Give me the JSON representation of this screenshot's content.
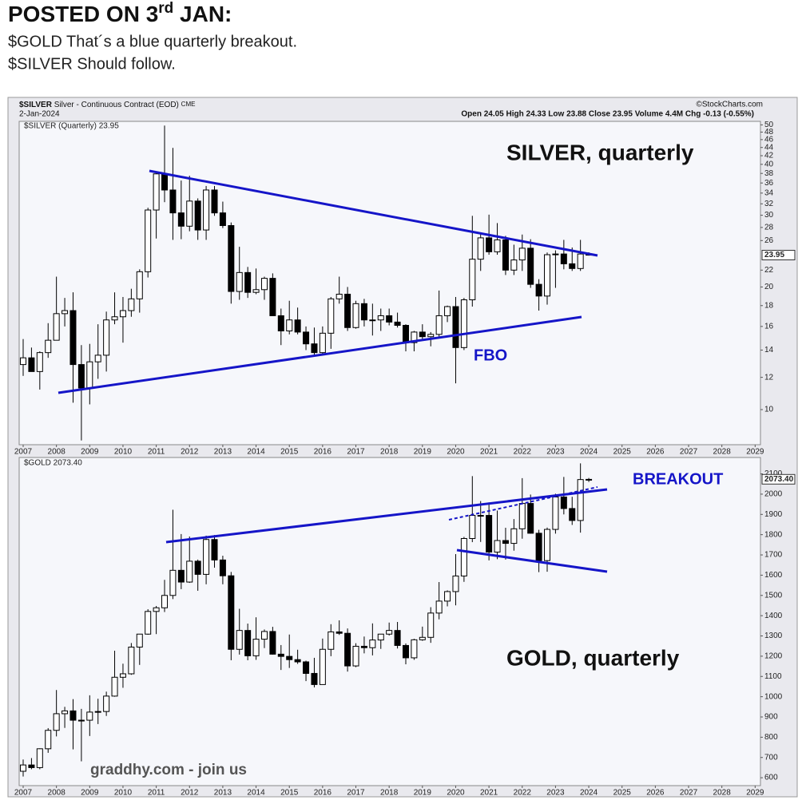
{
  "post": {
    "title": [
      "POSTED ON 3",
      "rd",
      " JAN:"
    ],
    "lines": [
      "$GOLD That´s a blue quarterly breakout.",
      "$SILVER Should follow."
    ]
  },
  "header": {
    "symbol": "$SILVER",
    "description": "Silver - Continuous Contract (EOD)",
    "exchange": "CME",
    "date": "2-Jan-2024",
    "quote": "Open 24.05  High 24.33  Low 23.88  Close 23.95  Volume 4.4M  Chg -0.13 (-0.55%)",
    "source": "©StockCharts.com"
  },
  "chart_data": [
    {
      "type": "candlestick",
      "legend": "$SILVER (Quarterly) 23.95",
      "log_scale": true,
      "grid": false,
      "annotations": [
        "SILVER, quarterly",
        "FBO"
      ],
      "last": 23.95,
      "xlim": [
        2006.88,
        2029.16
      ],
      "xticks": [
        2007,
        2008,
        2009,
        2010,
        2011,
        2012,
        2013,
        2014,
        2015,
        2016,
        2017,
        2018,
        2019,
        2020,
        2021,
        2022,
        2023,
        2024,
        2025,
        2026,
        2027,
        2028,
        2029
      ],
      "ylim": [
        8.2,
        51
      ],
      "yticks": [
        10,
        12,
        14,
        16,
        18,
        20,
        22,
        26,
        28,
        30,
        32,
        34,
        36,
        38,
        40,
        42,
        44,
        46,
        48,
        50
      ],
      "x": [
        2007,
        2007.25,
        2007.5,
        2007.75,
        2008,
        2008.25,
        2008.5,
        2008.75,
        2009,
        2009.25,
        2009.5,
        2009.75,
        2010,
        2010.25,
        2010.5,
        2010.75,
        2011,
        2011.25,
        2011.5,
        2011.75,
        2012,
        2012.25,
        2012.5,
        2012.75,
        2013,
        2013.25,
        2013.5,
        2013.75,
        2014,
        2014.25,
        2014.5,
        2014.75,
        2015,
        2015.25,
        2015.5,
        2015.75,
        2016,
        2016.25,
        2016.5,
        2016.75,
        2017,
        2017.25,
        2017.5,
        2017.75,
        2018,
        2018.25,
        2018.5,
        2018.75,
        2019,
        2019.25,
        2019.5,
        2019.75,
        2020,
        2020.25,
        2020.5,
        2020.75,
        2021,
        2021.25,
        2021.5,
        2021.75,
        2022,
        2022.25,
        2022.5,
        2022.75,
        2023,
        2023.25,
        2023.5,
        2023.75,
        2024
      ],
      "ohlc": [
        [
          12.9,
          14.9,
          12.1,
          13.4
        ],
        [
          13.4,
          14.2,
          12.4,
          12.4
        ],
        [
          12.4,
          13.9,
          11.2,
          13.8
        ],
        [
          13.8,
          16.3,
          13.4,
          14.8
        ],
        [
          14.8,
          21.2,
          14.8,
          17.2
        ],
        [
          17.2,
          18.8,
          16.0,
          17.5
        ],
        [
          17.5,
          19.4,
          10.4,
          12.9
        ],
        [
          12.9,
          14.4,
          8.4,
          11.3
        ],
        [
          11.3,
          14.5,
          10.3,
          13.1
        ],
        [
          13.1,
          16.2,
          11.9,
          13.6
        ],
        [
          13.6,
          17.4,
          12.4,
          16.6
        ],
        [
          16.6,
          19.4,
          16.2,
          16.9
        ],
        [
          16.9,
          18.9,
          14.6,
          17.5
        ],
        [
          17.5,
          19.8,
          16.9,
          18.7
        ],
        [
          18.7,
          22.1,
          17.3,
          21.8
        ],
        [
          21.8,
          31.3,
          21.1,
          30.9
        ],
        [
          30.9,
          38.2,
          26.3,
          37.9
        ],
        [
          37.9,
          49.8,
          32.3,
          34.6
        ],
        [
          34.6,
          43.9,
          26.1,
          30.4
        ],
        [
          30.4,
          36.5,
          26.2,
          28.2
        ],
        [
          28.2,
          37.5,
          27.4,
          32.5
        ],
        [
          32.5,
          33.0,
          26.1,
          27.6
        ],
        [
          27.6,
          35.4,
          26.1,
          34.6
        ],
        [
          34.6,
          35.4,
          29.9,
          30.4
        ],
        [
          30.4,
          32.4,
          27.9,
          28.3
        ],
        [
          28.3,
          28.8,
          18.2,
          19.5
        ],
        [
          19.5,
          25.1,
          18.6,
          21.7
        ],
        [
          21.7,
          22.4,
          18.8,
          19.4
        ],
        [
          19.4,
          22.2,
          19.2,
          19.7
        ],
        [
          19.7,
          21.2,
          18.6,
          21.0
        ],
        [
          21.0,
          21.6,
          17.0,
          17.0
        ],
        [
          17.0,
          17.7,
          14.4,
          15.6
        ],
        [
          15.6,
          18.5,
          15.3,
          16.6
        ],
        [
          16.6,
          17.8,
          15.3,
          15.5
        ],
        [
          15.5,
          16.0,
          14.0,
          14.5
        ],
        [
          14.5,
          15.9,
          13.6,
          13.8
        ],
        [
          13.8,
          16.0,
          13.7,
          15.4
        ],
        [
          15.4,
          18.9,
          14.1,
          18.7
        ],
        [
          18.7,
          21.2,
          18.2,
          19.2
        ],
        [
          19.2,
          20.0,
          15.6,
          15.9
        ],
        [
          15.9,
          18.5,
          15.8,
          18.2
        ],
        [
          18.2,
          18.7,
          16.0,
          16.6
        ],
        [
          16.6,
          18.2,
          15.2,
          16.6
        ],
        [
          16.6,
          17.7,
          15.6,
          17.0
        ],
        [
          17.0,
          17.7,
          16.1,
          16.4
        ],
        [
          16.4,
          17.3,
          15.9,
          16.1
        ],
        [
          16.1,
          16.2,
          13.9,
          14.6
        ],
        [
          14.6,
          15.6,
          13.9,
          15.5
        ],
        [
          15.5,
          16.2,
          14.8,
          15.1
        ],
        [
          15.1,
          15.5,
          14.3,
          15.3
        ],
        [
          15.3,
          19.6,
          15.0,
          17.0
        ],
        [
          17.0,
          18.0,
          16.4,
          17.9
        ],
        [
          17.9,
          18.9,
          11.6,
          14.2
        ],
        [
          14.2,
          18.8,
          14.0,
          18.6
        ],
        [
          18.6,
          29.9,
          17.9,
          23.4
        ],
        [
          23.4,
          27.0,
          21.9,
          26.4
        ],
        [
          26.4,
          30.1,
          24.0,
          24.4
        ],
        [
          24.4,
          28.7,
          24.0,
          26.1
        ],
        [
          26.1,
          26.7,
          21.4,
          22.0
        ],
        [
          22.0,
          25.4,
          21.4,
          23.3
        ],
        [
          23.3,
          26.9,
          21.9,
          24.9
        ],
        [
          24.9,
          26.2,
          19.9,
          20.3
        ],
        [
          20.3,
          20.9,
          17.5,
          19.0
        ],
        [
          19.0,
          24.3,
          18.1,
          24.0
        ],
        [
          24.0,
          24.6,
          19.9,
          24.1
        ],
        [
          24.1,
          26.1,
          22.1,
          22.8
        ],
        [
          22.8,
          25.0,
          21.9,
          22.2
        ],
        [
          22.2,
          26.1,
          21.9,
          24.1
        ],
        [
          24.05,
          24.33,
          23.88,
          23.95
        ]
      ]
    },
    {
      "type": "candlestick",
      "legend": "$GOLD 2073.40",
      "log_scale": false,
      "grid": false,
      "annotations": [
        "BREAKOUT",
        "GOLD, quarterly",
        "graddhy.com - join us"
      ],
      "last": {
        "value": 2073.4,
        "label": "2073.40"
      },
      "xlim": [
        2006.88,
        2029.16
      ],
      "xticks": [
        2007,
        2008,
        2009,
        2010,
        2011,
        2012,
        2013,
        2014,
        2015,
        2016,
        2017,
        2018,
        2019,
        2020,
        2021,
        2022,
        2023,
        2024,
        2025,
        2026,
        2027,
        2028,
        2029
      ],
      "ylim": [
        561,
        2181
      ],
      "yticks": [
        600,
        700,
        800,
        900,
        1000,
        1100,
        1200,
        1300,
        1400,
        1500,
        1600,
        1700,
        1800,
        1900,
        2000,
        2100
      ],
      "x": [
        2007,
        2007.25,
        2007.5,
        2007.75,
        2008,
        2008.25,
        2008.5,
        2008.75,
        2009,
        2009.25,
        2009.5,
        2009.75,
        2010,
        2010.25,
        2010.5,
        2010.75,
        2011,
        2011.25,
        2011.5,
        2011.75,
        2012,
        2012.25,
        2012.5,
        2012.75,
        2013,
        2013.25,
        2013.5,
        2013.75,
        2014,
        2014.25,
        2014.5,
        2014.75,
        2015,
        2015.25,
        2015.5,
        2015.75,
        2016,
        2016.25,
        2016.5,
        2016.75,
        2017,
        2017.25,
        2017.5,
        2017.75,
        2018,
        2018.25,
        2018.5,
        2018.75,
        2019,
        2019.25,
        2019.5,
        2019.75,
        2020,
        2020.25,
        2020.5,
        2020.75,
        2021,
        2021.25,
        2021.5,
        2021.75,
        2022,
        2022.25,
        2022.5,
        2022.75,
        2023,
        2023.25,
        2023.5,
        2023.75,
        2024
      ],
      "ohlc": [
        [
          632,
          690,
          606,
          663
        ],
        [
          663,
          697,
          642,
          650
        ],
        [
          650,
          745,
          642,
          743
        ],
        [
          743,
          845,
          723,
          834
        ],
        [
          834,
          1033,
          804,
          916
        ],
        [
          916,
          950,
          846,
          930
        ],
        [
          930,
          988,
          740,
          884
        ],
        [
          884,
          940,
          681,
          884
        ],
        [
          884,
          1007,
          806,
          924
        ],
        [
          924,
          990,
          865,
          927
        ],
        [
          927,
          1025,
          905,
          1003
        ],
        [
          1003,
          1227,
          1000,
          1096
        ],
        [
          1096,
          1163,
          1044,
          1113
        ],
        [
          1113,
          1265,
          1108,
          1245
        ],
        [
          1245,
          1310,
          1157,
          1309
        ],
        [
          1309,
          1432,
          1306,
          1421
        ],
        [
          1421,
          1448,
          1309,
          1439
        ],
        [
          1439,
          1577,
          1418,
          1500
        ],
        [
          1500,
          1923,
          1482,
          1624
        ],
        [
          1624,
          1803,
          1531,
          1566
        ],
        [
          1566,
          1791,
          1562,
          1669
        ],
        [
          1669,
          1677,
          1523,
          1604
        ],
        [
          1604,
          1795,
          1555,
          1776
        ],
        [
          1776,
          1798,
          1637,
          1675
        ],
        [
          1675,
          1696,
          1555,
          1597
        ],
        [
          1597,
          1616,
          1180,
          1234
        ],
        [
          1234,
          1434,
          1208,
          1327
        ],
        [
          1327,
          1361,
          1180,
          1202
        ],
        [
          1202,
          1392,
          1182,
          1284
        ],
        [
          1284,
          1332,
          1240,
          1322
        ],
        [
          1322,
          1345,
          1208,
          1210
        ],
        [
          1210,
          1255,
          1132,
          1199
        ],
        [
          1199,
          1307,
          1142,
          1183
        ],
        [
          1183,
          1232,
          1162,
          1172
        ],
        [
          1172,
          1178,
          1077,
          1115
        ],
        [
          1115,
          1192,
          1046,
          1060
        ],
        [
          1060,
          1287,
          1061,
          1234
        ],
        [
          1234,
          1358,
          1200,
          1320
        ],
        [
          1320,
          1377,
          1305,
          1313
        ],
        [
          1313,
          1337,
          1124,
          1152
        ],
        [
          1152,
          1264,
          1146,
          1249
        ],
        [
          1249,
          1297,
          1214,
          1242
        ],
        [
          1242,
          1362,
          1204,
          1280
        ],
        [
          1280,
          1306,
          1236,
          1309
        ],
        [
          1309,
          1366,
          1302,
          1327
        ],
        [
          1327,
          1369,
          1238,
          1253
        ],
        [
          1253,
          1263,
          1160,
          1192
        ],
        [
          1192,
          1286,
          1182,
          1281
        ],
        [
          1281,
          1346,
          1276,
          1293
        ],
        [
          1293,
          1442,
          1266,
          1413
        ],
        [
          1413,
          1566,
          1382,
          1472
        ],
        [
          1472,
          1525,
          1446,
          1519
        ],
        [
          1519,
          1704,
          1451,
          1596
        ],
        [
          1596,
          1789,
          1567,
          1781
        ],
        [
          1781,
          2089,
          1763,
          1895
        ],
        [
          1895,
          1966,
          1764,
          1895
        ],
        [
          1895,
          1959,
          1673,
          1714
        ],
        [
          1714,
          1919,
          1679,
          1771
        ],
        [
          1771,
          1834,
          1677,
          1757
        ],
        [
          1757,
          1877,
          1721,
          1829
        ],
        [
          1829,
          2079,
          1780,
          1954
        ],
        [
          1954,
          1998,
          1805,
          1807
        ],
        [
          1807,
          1824,
          1615,
          1672
        ],
        [
          1672,
          1835,
          1617,
          1826
        ],
        [
          1826,
          2002,
          1805,
          1986
        ],
        [
          1986,
          2085,
          1900,
          1929
        ],
        [
          1929,
          1987,
          1848,
          1870
        ],
        [
          1870,
          2152,
          1810,
          2072
        ],
        [
          2072,
          2080,
          2060,
          2073
        ]
      ]
    }
  ]
}
